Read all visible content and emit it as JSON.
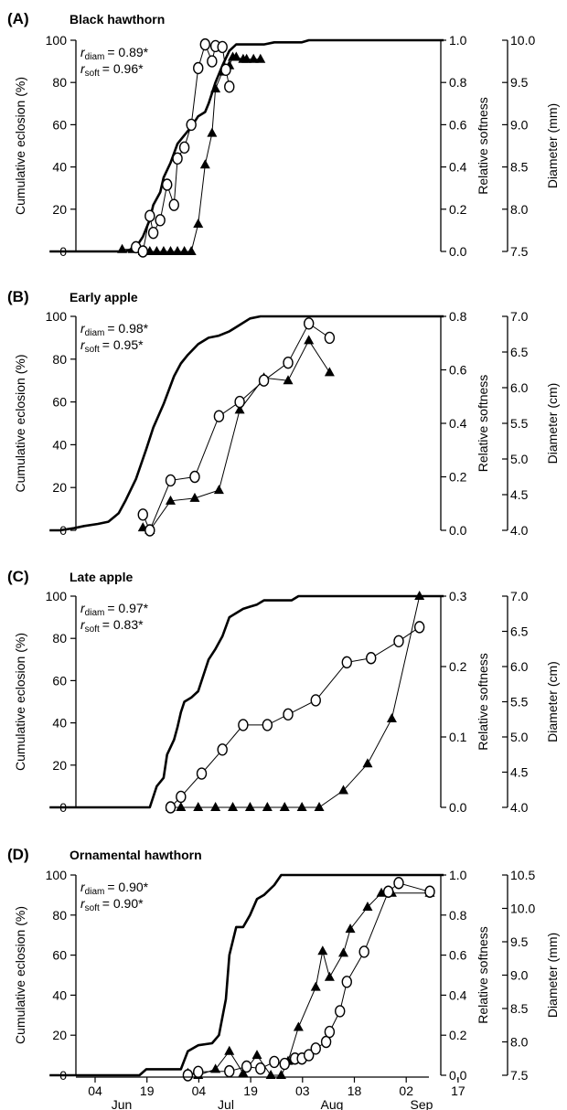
{
  "axis_titles": {
    "left": "Cumulative eclosion (%)",
    "softness": "Relative softness"
  },
  "x_axis": {
    "tick_labels": [
      "04",
      "19",
      "04",
      "19",
      "03",
      "18",
      "02",
      "17"
    ],
    "month_labels": [
      "Jun",
      "Jul",
      "Aug",
      "Sep"
    ]
  },
  "chart_data": [
    {
      "type": "line",
      "panel": "(A)",
      "title": "Black hawthorn",
      "r_diam": "= 0.89*",
      "r_soft": "= 0.96*",
      "left_ticks": [
        "0",
        "20",
        "40",
        "60",
        "80",
        "100"
      ],
      "soft_ticks": [
        "0.0",
        "0.2",
        "0.4",
        "0.6",
        "0.8",
        "1.0"
      ],
      "diam_ticks": [
        "7.5",
        "8.0",
        "8.5",
        "9.0",
        "9.5",
        "10.0"
      ],
      "diam_label": "Diameter (mm)",
      "ylim_left": [
        0,
        100
      ],
      "ylim_soft": [
        0,
        1.0
      ],
      "ylim_diam": [
        7.5,
        10.0
      ],
      "eclosion": [
        [
          -10,
          0
        ],
        [
          12,
          0
        ],
        [
          15,
          2
        ],
        [
          17,
          7
        ],
        [
          19,
          15
        ],
        [
          20,
          22
        ],
        [
          22,
          28
        ],
        [
          23,
          35
        ],
        [
          25,
          42
        ],
        [
          27,
          51
        ],
        [
          29,
          55
        ],
        [
          31,
          59
        ],
        [
          33,
          64
        ],
        [
          35,
          66
        ],
        [
          36,
          70
        ],
        [
          38,
          80
        ],
        [
          40,
          88
        ],
        [
          42,
          95
        ],
        [
          44,
          98
        ],
        [
          52,
          98
        ],
        [
          55,
          99
        ],
        [
          63,
          99
        ],
        [
          65,
          100
        ],
        [
          104,
          100
        ]
      ],
      "softness": [
        [
          11,
          0.01
        ],
        [
          14,
          0.01
        ],
        [
          17,
          0
        ],
        [
          19,
          0
        ],
        [
          21,
          0
        ],
        [
          23,
          0
        ],
        [
          25,
          0
        ],
        [
          27,
          0
        ],
        [
          29,
          0
        ],
        [
          31,
          0
        ],
        [
          33,
          0.13
        ],
        [
          35,
          0.41
        ],
        [
          37,
          0.56
        ],
        [
          38,
          0.77
        ],
        [
          40,
          0.85
        ],
        [
          42,
          0.88
        ],
        [
          43,
          0.92
        ],
        [
          44,
          0.92
        ],
        [
          46,
          0.91
        ],
        [
          47,
          0.91
        ],
        [
          49,
          0.91
        ],
        [
          51,
          0.91
        ]
      ],
      "diameter": [
        [
          15,
          7.55
        ],
        [
          17,
          7.5
        ],
        [
          19,
          7.92
        ],
        [
          20,
          7.72
        ],
        [
          22,
          7.87
        ],
        [
          24,
          8.29
        ],
        [
          26,
          8.05
        ],
        [
          27,
          8.6
        ],
        [
          29,
          8.73
        ],
        [
          31,
          9.0
        ],
        [
          33,
          9.67
        ],
        [
          35,
          9.95
        ],
        [
          37,
          9.75
        ],
        [
          38,
          9.93
        ],
        [
          40,
          9.92
        ],
        [
          41,
          9.65
        ],
        [
          42,
          9.45
        ]
      ]
    },
    {
      "type": "line",
      "panel": "(B)",
      "title": "Early apple",
      "r_diam": "= 0.98*",
      "r_soft": "= 0.95*",
      "left_ticks": [
        "0",
        "20",
        "40",
        "60",
        "80",
        "100"
      ],
      "soft_ticks": [
        "0.0",
        "0.2",
        "0.4",
        "0.6",
        "0.8"
      ],
      "diam_ticks": [
        "4.0",
        "4.5",
        "5.0",
        "5.5",
        "6.0",
        "6.5",
        "7.0"
      ],
      "diam_label": "Diameter (cm)",
      "ylim_left": [
        0,
        100
      ],
      "ylim_soft": [
        0,
        0.8
      ],
      "ylim_diam": [
        4.0,
        7.0
      ],
      "eclosion": [
        [
          -10,
          0
        ],
        [
          -7,
          0
        ],
        [
          -3,
          1
        ],
        [
          0,
          2
        ],
        [
          4,
          3
        ],
        [
          7,
          4
        ],
        [
          10,
          8
        ],
        [
          12,
          14
        ],
        [
          15,
          24
        ],
        [
          18,
          38
        ],
        [
          20,
          48
        ],
        [
          23,
          59
        ],
        [
          26,
          72
        ],
        [
          28,
          78
        ],
        [
          30,
          82
        ],
        [
          33,
          87
        ],
        [
          36,
          90
        ],
        [
          39,
          91
        ],
        [
          42,
          93
        ],
        [
          45,
          96
        ],
        [
          48,
          99
        ],
        [
          51,
          100
        ],
        [
          104,
          100
        ]
      ],
      "softness": [
        [
          17,
          0.01
        ],
        [
          19,
          0.0
        ],
        [
          25,
          0.11
        ],
        [
          32,
          0.12
        ],
        [
          39,
          0.15
        ],
        [
          45,
          0.45
        ],
        [
          52,
          0.57
        ],
        [
          59,
          0.56
        ],
        [
          65,
          0.71
        ],
        [
          71,
          0.59
        ]
      ],
      "diameter": [
        [
          17,
          4.22
        ],
        [
          19,
          4.0
        ],
        [
          25,
          4.7
        ],
        [
          32,
          4.75
        ],
        [
          39,
          5.6
        ],
        [
          45,
          5.8
        ],
        [
          52,
          6.1
        ],
        [
          59,
          6.35
        ],
        [
          65,
          6.9
        ],
        [
          71,
          6.7
        ]
      ]
    },
    {
      "type": "line",
      "panel": "(C)",
      "title": "Late apple",
      "r_diam": "= 0.97*",
      "r_soft": "= 0.83*",
      "left_ticks": [
        "0",
        "20",
        "40",
        "60",
        "80",
        "100"
      ],
      "soft_ticks": [
        "0.0",
        "0.1",
        "0.2",
        "0.3"
      ],
      "diam_ticks": [
        "4.0",
        "4.5",
        "5.0",
        "5.5",
        "6.0",
        "6.5",
        "7.0"
      ],
      "diam_label": "Diameter (cm)",
      "ylim_left": [
        0,
        100
      ],
      "ylim_soft": [
        0,
        0.3
      ],
      "ylim_diam": [
        4.0,
        7.0
      ],
      "eclosion": [
        [
          -10,
          0
        ],
        [
          19,
          0
        ],
        [
          21,
          10
        ],
        [
          23,
          14
        ],
        [
          24,
          25
        ],
        [
          26,
          32
        ],
        [
          27,
          38
        ],
        [
          28,
          45
        ],
        [
          29,
          50
        ],
        [
          31,
          52
        ],
        [
          33,
          55
        ],
        [
          35,
          65
        ],
        [
          36,
          70
        ],
        [
          38,
          75
        ],
        [
          40,
          81
        ],
        [
          42,
          90
        ],
        [
          44,
          92
        ],
        [
          46,
          94
        ],
        [
          48,
          95
        ],
        [
          50,
          96
        ],
        [
          52,
          98
        ],
        [
          54,
          98
        ],
        [
          60,
          98
        ],
        [
          62,
          100
        ],
        [
          104,
          100
        ]
      ],
      "softness": [
        [
          25,
          0
        ],
        [
          28,
          0
        ],
        [
          33,
          0
        ],
        [
          38,
          0
        ],
        [
          43,
          0
        ],
        [
          48,
          0
        ],
        [
          53,
          0
        ],
        [
          58,
          0
        ],
        [
          63,
          0
        ],
        [
          68,
          0
        ],
        [
          75,
          0.024
        ],
        [
          82,
          0.062
        ],
        [
          89,
          0.126
        ],
        [
          97,
          0.3
        ]
      ],
      "diameter": [
        [
          25,
          4.0
        ],
        [
          28,
          4.15
        ],
        [
          34,
          4.48
        ],
        [
          40,
          4.82
        ],
        [
          46,
          5.17
        ],
        [
          53,
          5.17
        ],
        [
          59,
          5.32
        ],
        [
          67,
          5.52
        ],
        [
          76,
          6.06
        ],
        [
          83,
          6.12
        ],
        [
          91,
          6.36
        ],
        [
          97,
          6.56
        ]
      ]
    },
    {
      "type": "line",
      "panel": "(D)",
      "title": "Ornamental hawthorn",
      "r_diam": "= 0.90*",
      "r_soft": "= 0.90*",
      "left_ticks": [
        "0",
        "20",
        "40",
        "60",
        "80",
        "100"
      ],
      "soft_ticks": [
        "0.0",
        "0.2",
        "0.4",
        "0.6",
        "0.8",
        "1.0"
      ],
      "diam_ticks": [
        "7.5",
        "8.0",
        "8.5",
        "9.0",
        "9.5",
        "10.0",
        "10.5"
      ],
      "diam_label": "Diameter (mm)",
      "ylim_left": [
        0,
        100
      ],
      "ylim_soft": [
        0,
        1.0
      ],
      "ylim_diam": [
        7.5,
        10.5
      ],
      "eclosion": [
        [
          -10,
          0
        ],
        [
          16,
          0
        ],
        [
          18,
          3
        ],
        [
          28,
          3
        ],
        [
          30,
          12
        ],
        [
          33,
          15
        ],
        [
          37,
          16
        ],
        [
          39,
          20
        ],
        [
          41,
          38
        ],
        [
          42,
          60
        ],
        [
          44,
          74
        ],
        [
          46,
          74
        ],
        [
          48,
          80
        ],
        [
          50,
          88
        ],
        [
          52,
          90
        ],
        [
          55,
          95
        ],
        [
          57,
          100
        ],
        [
          104,
          100
        ]
      ],
      "softness": [
        [
          30,
          0.01
        ],
        [
          33,
          0
        ],
        [
          38,
          0.03
        ],
        [
          42,
          0.12
        ],
        [
          46,
          0.01
        ],
        [
          50,
          0.1
        ],
        [
          54,
          0
        ],
        [
          57,
          0
        ],
        [
          59,
          0.07
        ],
        [
          62,
          0.24
        ],
        [
          67,
          0.44
        ],
        [
          69,
          0.62
        ],
        [
          71,
          0.49
        ],
        [
          75,
          0.61
        ],
        [
          77,
          0.73
        ],
        [
          82,
          0.84
        ],
        [
          86,
          0.91
        ],
        [
          89,
          0.91
        ],
        [
          100,
          0.91
        ]
      ],
      "diameter": [
        [
          30,
          7.5
        ],
        [
          33,
          7.55
        ],
        [
          42,
          7.56
        ],
        [
          47,
          7.63
        ],
        [
          51,
          7.6
        ],
        [
          55,
          7.7
        ],
        [
          58,
          7.67
        ],
        [
          61,
          7.75
        ],
        [
          63,
          7.75
        ],
        [
          65,
          7.8
        ],
        [
          67,
          7.9
        ],
        [
          70,
          8.0
        ],
        [
          71,
          8.15
        ],
        [
          74,
          8.46
        ],
        [
          76,
          8.9
        ],
        [
          81,
          9.35
        ],
        [
          88,
          10.25
        ],
        [
          91,
          10.38
        ],
        [
          100,
          10.25
        ]
      ]
    }
  ]
}
